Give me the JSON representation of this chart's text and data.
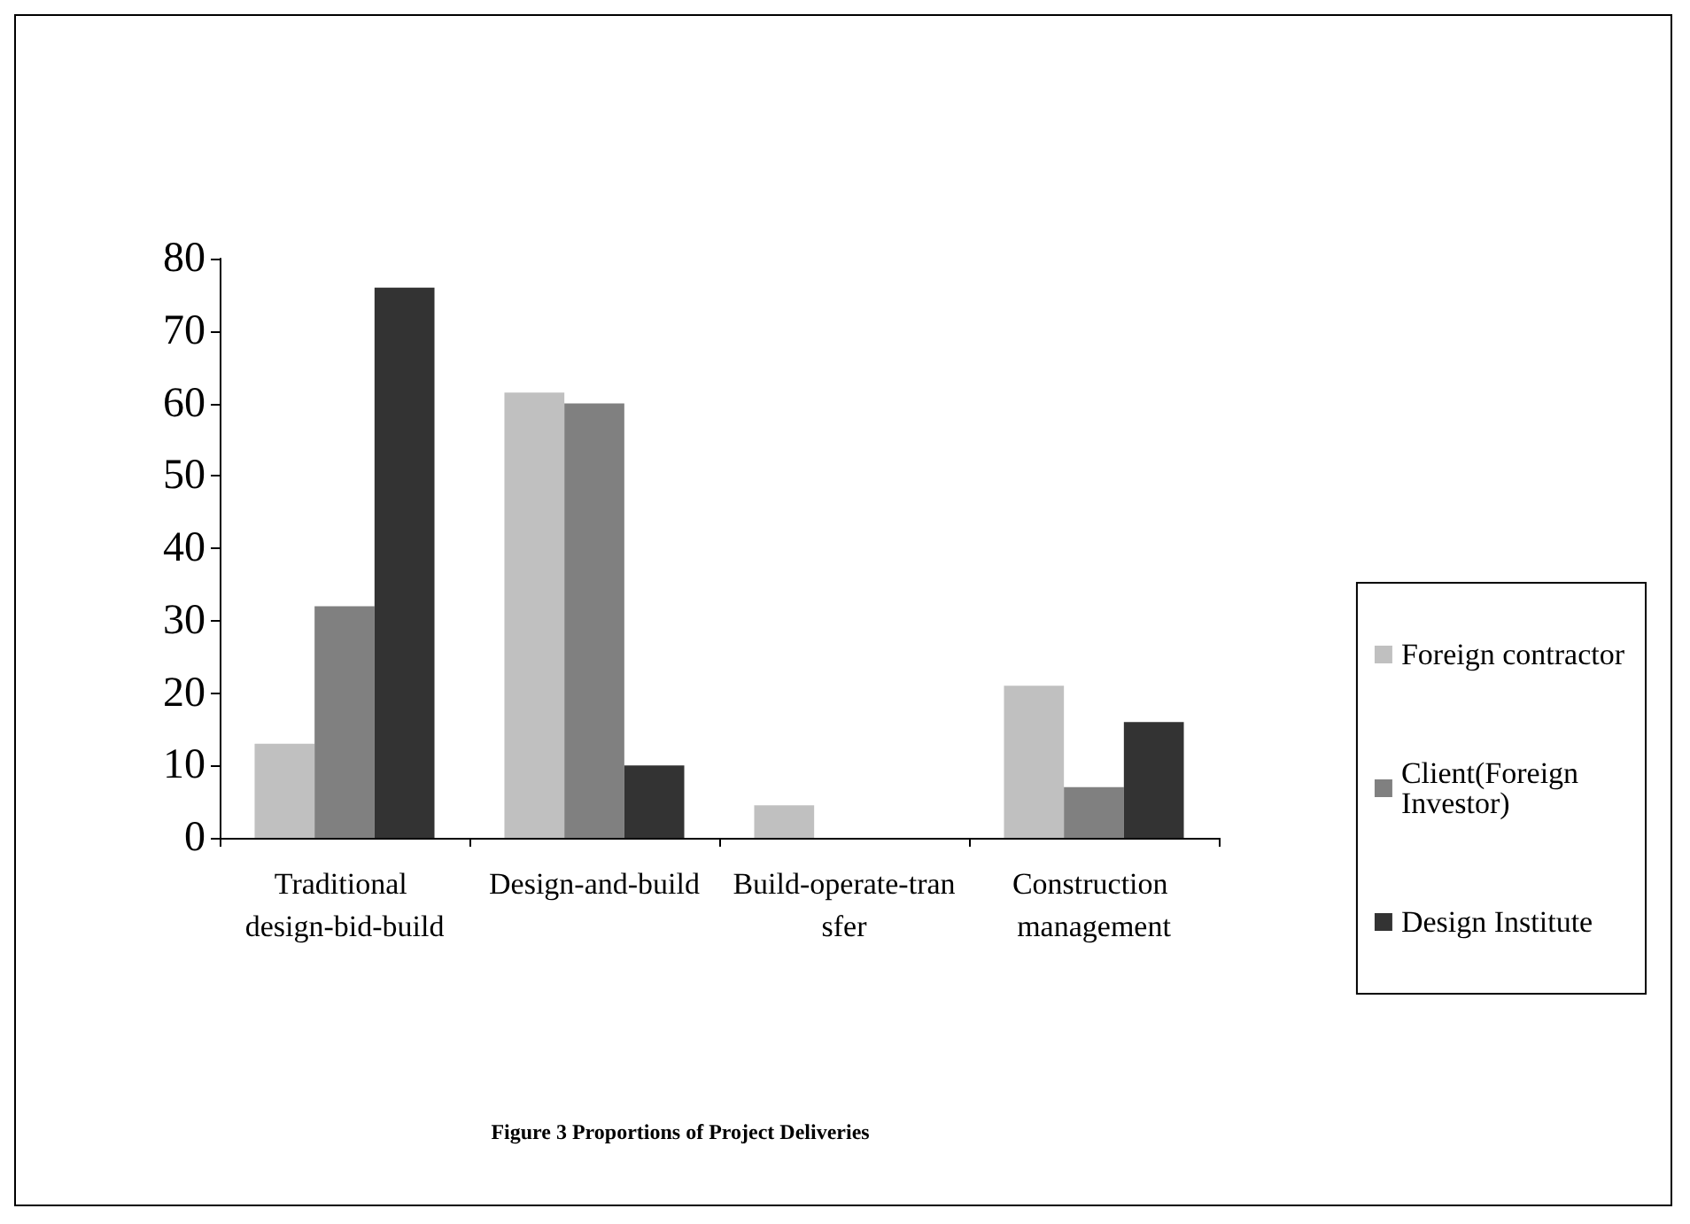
{
  "chart_data": {
    "type": "bar",
    "title": "Figure 3 Proportions of Project Deliveries",
    "categories": [
      "Traditional design-bid-build",
      "Design-and-build",
      "Build-operate-transfer",
      "Construction management"
    ],
    "series": [
      {
        "name": "Foreign contractor",
        "color": "#c0c0c0",
        "values": [
          13,
          61.5,
          4.5,
          21
        ]
      },
      {
        "name": "Client(Foreign Investor)",
        "color": "#808080",
        "values": [
          32,
          60,
          0,
          7
        ]
      },
      {
        "name": "Design Institute",
        "color": "#333333",
        "values": [
          76,
          10,
          0,
          16
        ]
      }
    ],
    "ylim": [
      0,
      80
    ],
    "yticks": [
      0,
      10,
      20,
      30,
      40,
      50,
      60,
      70,
      80
    ],
    "grid": false,
    "legend": "right"
  }
}
